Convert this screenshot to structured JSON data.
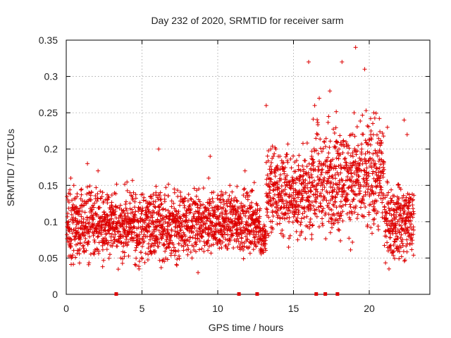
{
  "chart_data": {
    "type": "scatter",
    "title": "Day 232 of 2020, SRMTID for receiver sarm",
    "xlabel": "GPS time / hours",
    "ylabel": "SRMTID / TECUs",
    "xlim": [
      0,
      24
    ],
    "ylim": [
      0,
      0.35
    ],
    "xticks": [
      0,
      5,
      10,
      15,
      20
    ],
    "xtick_labels": [
      "0",
      "5",
      "10",
      "15",
      "20"
    ],
    "yticks": [
      0,
      0.05,
      0.1,
      0.15,
      0.2,
      0.25,
      0.3,
      0.35
    ],
    "ytick_labels": [
      "0",
      "0.05",
      "0.1",
      "0.15",
      "0.2",
      "0.25",
      "0.3",
      "0.35"
    ],
    "grid": true,
    "marker": "plus",
    "color": "#dd0000",
    "series": [
      {
        "name": "SRMTID",
        "x": [
          0.1,
          0.2,
          0.3,
          0.4,
          0.5,
          0.6,
          0.8,
          1.0,
          1.2,
          1.5,
          1.7,
          1.9,
          2.2,
          2.5,
          2.7,
          3.0,
          3.2,
          3.4,
          3.7,
          4.0,
          4.2,
          4.5,
          4.8,
          5.0,
          5.3,
          5.6,
          5.9,
          6.2,
          6.5,
          6.8,
          7.1,
          7.4,
          7.7,
          8.0,
          8.3,
          8.6,
          8.9,
          9.2,
          9.4,
          9.6,
          9.8,
          10.1,
          10.4,
          10.7,
          11.0,
          11.3,
          11.6,
          11.9,
          12.2,
          12.5,
          12.8,
          13.1,
          13.3,
          13.5,
          13.8,
          14.1,
          14.4,
          14.7,
          15.0,
          15.3,
          15.6,
          15.9,
          16.2,
          16.4,
          16.6,
          16.8,
          17.0,
          17.3,
          17.6,
          17.8,
          18.0,
          18.3,
          18.6,
          18.8,
          19.0,
          19.2,
          19.5,
          19.8,
          20.1,
          20.4,
          20.7,
          21.0,
          21.3,
          21.6,
          21.9,
          22.2,
          22.4,
          22.6,
          22.8,
          0.3,
          1.4,
          2.1,
          3.6,
          4.6,
          6.1,
          7.3,
          8.7,
          9.5,
          10.8,
          11.8,
          12.9,
          13.2,
          14.0,
          15.2,
          16.0,
          16.7,
          17.4,
          18.2,
          19.1,
          19.7,
          20.3,
          21.2,
          22.3,
          22.5
        ],
        "y": [
          0.13,
          0.09,
          0.07,
          0.12,
          0.15,
          0.08,
          0.11,
          0.1,
          0.06,
          0.14,
          0.12,
          0.09,
          0.1,
          0.07,
          0.13,
          0.11,
          0.09,
          0.12,
          0.08,
          0.1,
          0.14,
          0.11,
          0.07,
          0.09,
          0.12,
          0.08,
          0.1,
          0.13,
          0.09,
          0.07,
          0.11,
          0.06,
          0.08,
          0.09,
          0.05,
          0.1,
          0.08,
          0.12,
          0.16,
          0.14,
          0.11,
          0.13,
          0.1,
          0.09,
          0.12,
          0.08,
          0.1,
          0.09,
          0.07,
          0.11,
          0.06,
          0.08,
          0.15,
          0.2,
          0.17,
          0.13,
          0.12,
          0.1,
          0.14,
          0.11,
          0.13,
          0.12,
          0.19,
          0.26,
          0.22,
          0.15,
          0.18,
          0.12,
          0.16,
          0.21,
          0.2,
          0.15,
          0.13,
          0.22,
          0.25,
          0.18,
          0.2,
          0.16,
          0.22,
          0.18,
          0.14,
          0.12,
          0.1,
          0.09,
          0.13,
          0.07,
          0.1,
          0.08,
          0.09,
          0.16,
          0.18,
          0.17,
          0.05,
          0.04,
          0.2,
          0.04,
          0.03,
          0.19,
          0.15,
          0.17,
          0.06,
          0.26,
          0.19,
          0.16,
          0.32,
          0.27,
          0.28,
          0.32,
          0.34,
          0.31,
          0.25,
          0.23,
          0.24,
          0.22
        ],
        "zero_values_x": [
          3.3,
          11.4,
          12.6,
          16.5,
          17.1,
          17.9
        ]
      }
    ]
  }
}
